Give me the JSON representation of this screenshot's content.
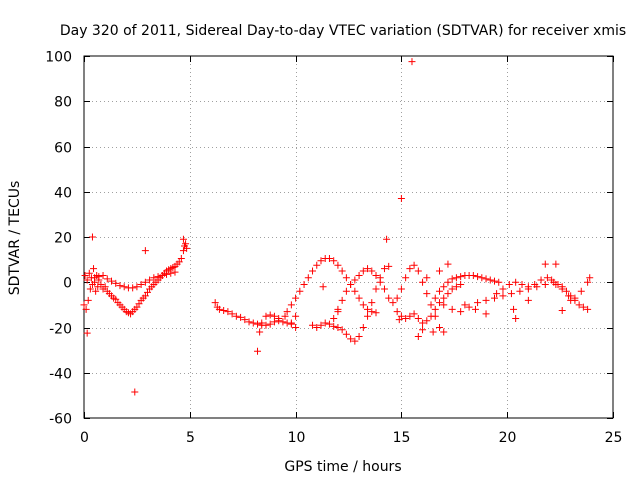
{
  "chart_data": {
    "type": "scatter",
    "title": "Day 320 of 2011, Sidereal Day-to-day VTEC variation (SDTVAR) for receiver xmis",
    "xlabel": "GPS time / hours",
    "ylabel": "SDTVAR / TECUs",
    "xlim": [
      0,
      25
    ],
    "ylim": [
      -60,
      100
    ],
    "xticks": [
      0,
      5,
      10,
      15,
      20,
      25
    ],
    "yticks": [
      -60,
      -40,
      -20,
      0,
      20,
      40,
      60,
      80,
      100
    ],
    "grid": true,
    "marker": "+",
    "color": "#ff0000",
    "series": [
      {
        "name": "SDTVAR",
        "points": [
          [
            0.0,
            -10.0
          ],
          [
            0.05,
            3.0
          ],
          [
            0.1,
            -12.0
          ],
          [
            0.15,
            1.0
          ],
          [
            0.2,
            -8.0
          ],
          [
            0.25,
            4.0
          ],
          [
            0.3,
            -3.0
          ],
          [
            0.35,
            2.0
          ],
          [
            0.4,
            -1.0
          ],
          [
            0.45,
            6.0
          ],
          [
            0.5,
            0.0
          ],
          [
            0.55,
            -4.0
          ],
          [
            0.6,
            3.0
          ],
          [
            0.65,
            -2.0
          ],
          [
            0.7,
            1.0
          ],
          [
            0.8,
            -1.0
          ],
          [
            0.9,
            -3.0
          ],
          [
            1.0,
            -2.0
          ],
          [
            1.1,
            -4.0
          ],
          [
            1.2,
            -5.0
          ],
          [
            1.3,
            -6.0
          ],
          [
            1.4,
            -7.0
          ],
          [
            1.5,
            -7.5
          ],
          [
            1.6,
            -9.0
          ],
          [
            1.7,
            -10.0
          ],
          [
            1.8,
            -11.0
          ],
          [
            1.9,
            -12.0
          ],
          [
            2.0,
            -13.0
          ],
          [
            2.1,
            -13.5
          ],
          [
            2.2,
            -14.0
          ],
          [
            2.3,
            -13.0
          ],
          [
            2.4,
            -12.0
          ],
          [
            2.5,
            -11.0
          ],
          [
            2.6,
            -9.5
          ],
          [
            2.7,
            -8.0
          ],
          [
            2.8,
            -7.0
          ],
          [
            2.9,
            -6.0
          ],
          [
            3.0,
            -4.5
          ],
          [
            3.1,
            -3.0
          ],
          [
            3.2,
            -2.0
          ],
          [
            3.3,
            -1.0
          ],
          [
            3.4,
            0.0
          ],
          [
            3.5,
            1.0
          ],
          [
            3.6,
            2.0
          ],
          [
            3.7,
            3.0
          ],
          [
            3.8,
            4.0
          ],
          [
            3.9,
            5.0
          ],
          [
            4.0,
            5.5
          ],
          [
            4.1,
            6.0
          ],
          [
            4.2,
            6.5
          ],
          [
            4.3,
            7.0
          ],
          [
            4.4,
            8.0
          ],
          [
            4.5,
            9.0
          ],
          [
            4.6,
            10.5
          ],
          [
            4.7,
            14.0
          ],
          [
            4.75,
            16.0
          ],
          [
            4.8,
            17.0
          ],
          [
            4.85,
            15.0
          ],
          [
            0.5,
            2.0
          ],
          [
            0.7,
            2.5
          ],
          [
            0.9,
            3.0
          ],
          [
            1.1,
            1.5
          ],
          [
            1.3,
            0.5
          ],
          [
            1.5,
            -0.5
          ],
          [
            1.7,
            -1.5
          ],
          [
            1.9,
            -2.0
          ],
          [
            2.1,
            -2.5
          ],
          [
            2.3,
            -2.5
          ],
          [
            2.5,
            -2.0
          ],
          [
            2.7,
            -1.0
          ],
          [
            2.9,
            0.0
          ],
          [
            3.1,
            1.0
          ],
          [
            3.3,
            2.0
          ],
          [
            3.5,
            2.5
          ],
          [
            3.7,
            3.0
          ],
          [
            3.9,
            3.5
          ],
          [
            4.1,
            4.0
          ],
          [
            4.3,
            4.5
          ],
          [
            0.4,
            20.0
          ],
          [
            2.4,
            -48.5
          ],
          [
            2.9,
            14.0
          ],
          [
            0.15,
            -22.5
          ],
          [
            4.7,
            19.0
          ],
          [
            6.2,
            -9.0
          ],
          [
            6.3,
            -11.0
          ],
          [
            6.4,
            -12.0
          ],
          [
            6.6,
            -12.5
          ],
          [
            6.8,
            -13.0
          ],
          [
            7.0,
            -14.0
          ],
          [
            7.2,
            -15.0
          ],
          [
            7.4,
            -15.5
          ],
          [
            7.6,
            -16.5
          ],
          [
            7.8,
            -17.5
          ],
          [
            8.0,
            -18.0
          ],
          [
            8.2,
            -18.5
          ],
          [
            8.4,
            -19.0
          ],
          [
            8.6,
            -19.0
          ],
          [
            8.8,
            -18.5
          ],
          [
            9.0,
            -17.5
          ],
          [
            9.2,
            -17.0
          ],
          [
            9.4,
            -17.5
          ],
          [
            9.6,
            -18.0
          ],
          [
            9.8,
            -18.5
          ],
          [
            10.0,
            -20.0
          ],
          [
            8.2,
            -30.5
          ],
          [
            8.3,
            -22.0
          ],
          [
            8.4,
            -18.0
          ],
          [
            8.6,
            -15.0
          ],
          [
            8.8,
            -14.5
          ],
          [
            9.0,
            -15.0
          ],
          [
            9.2,
            -16.0
          ],
          [
            9.5,
            -15.0
          ],
          [
            9.6,
            -13.0
          ],
          [
            9.8,
            -10.0
          ],
          [
            10.0,
            -7.0
          ],
          [
            10.2,
            -4.0
          ],
          [
            10.4,
            -1.0
          ],
          [
            10.6,
            2.0
          ],
          [
            10.8,
            5.0
          ],
          [
            11.0,
            7.5
          ],
          [
            11.2,
            9.5
          ],
          [
            11.4,
            10.5
          ],
          [
            11.6,
            10.5
          ],
          [
            11.8,
            9.5
          ],
          [
            12.0,
            7.5
          ],
          [
            12.2,
            5.0
          ],
          [
            12.4,
            2.0
          ],
          [
            12.6,
            -1.0
          ],
          [
            12.8,
            -4.0
          ],
          [
            13.0,
            -7.0
          ],
          [
            13.2,
            -10.0
          ],
          [
            13.4,
            -12.0
          ],
          [
            13.6,
            -13.0
          ],
          [
            13.8,
            -13.5
          ],
          [
            10.8,
            -19.0
          ],
          [
            11.0,
            -20.0
          ],
          [
            11.2,
            -19.0
          ],
          [
            11.4,
            -18.0
          ],
          [
            11.6,
            -18.5
          ],
          [
            11.8,
            -19.5
          ],
          [
            12.0,
            -20.0
          ],
          [
            12.2,
            -21.0
          ],
          [
            12.4,
            -23.0
          ],
          [
            12.6,
            -25.0
          ],
          [
            12.8,
            -26.0
          ],
          [
            13.0,
            -24.0
          ],
          [
            13.2,
            -20.0
          ],
          [
            13.4,
            -15.0
          ],
          [
            13.6,
            -9.0
          ],
          [
            13.8,
            -3.0
          ],
          [
            14.0,
            2.0
          ],
          [
            14.2,
            6.0
          ],
          [
            14.4,
            7.0
          ],
          [
            11.8,
            -16.0
          ],
          [
            12.0,
            -12.0
          ],
          [
            12.2,
            -8.0
          ],
          [
            12.4,
            -4.0
          ],
          [
            12.6,
            -1.0
          ],
          [
            12.8,
            1.0
          ],
          [
            13.0,
            3.0
          ],
          [
            13.2,
            5.0
          ],
          [
            13.4,
            6.0
          ],
          [
            13.6,
            5.0
          ],
          [
            13.8,
            3.0
          ],
          [
            14.0,
            0.0
          ],
          [
            14.2,
            -3.0
          ],
          [
            14.4,
            -7.0
          ],
          [
            14.6,
            -9.0
          ],
          [
            14.8,
            -7.0
          ],
          [
            15.0,
            -3.0
          ],
          [
            15.2,
            2.0
          ],
          [
            15.4,
            6.0
          ],
          [
            15.6,
            7.5
          ],
          [
            15.8,
            5.0
          ],
          [
            16.0,
            0.0
          ],
          [
            16.2,
            -5.0
          ],
          [
            16.4,
            -10.0
          ],
          [
            16.6,
            -15.0
          ],
          [
            16.8,
            -20.0
          ],
          [
            17.0,
            -22.0
          ],
          [
            14.8,
            -13.0
          ],
          [
            15.0,
            -15.0
          ],
          [
            15.2,
            -16.0
          ],
          [
            15.4,
            -15.0
          ],
          [
            15.6,
            -14.0
          ],
          [
            15.8,
            -16.0
          ],
          [
            16.0,
            -18.0
          ],
          [
            16.2,
            -17.0
          ],
          [
            16.4,
            -15.0
          ],
          [
            16.6,
            -12.0
          ],
          [
            16.8,
            -9.0
          ],
          [
            17.0,
            -7.0
          ],
          [
            17.2,
            -5.0
          ],
          [
            17.4,
            -3.0
          ],
          [
            17.6,
            -2.0
          ],
          [
            17.8,
            -1.0
          ],
          [
            16.6,
            -7.0
          ],
          [
            16.8,
            -4.0
          ],
          [
            17.0,
            -2.0
          ],
          [
            17.2,
            0.0
          ],
          [
            17.4,
            1.5
          ],
          [
            17.6,
            2.0
          ],
          [
            17.8,
            2.5
          ],
          [
            18.0,
            3.0
          ],
          [
            18.2,
            3.0
          ],
          [
            18.4,
            3.0
          ],
          [
            18.6,
            2.5
          ],
          [
            18.8,
            2.0
          ],
          [
            19.0,
            1.5
          ],
          [
            19.2,
            1.0
          ],
          [
            19.4,
            0.5
          ],
          [
            19.6,
            0.0
          ],
          [
            17.0,
            -10.0
          ],
          [
            17.4,
            -12.0
          ],
          [
            17.8,
            -13.0
          ],
          [
            18.2,
            -11.0
          ],
          [
            18.6,
            -9.0
          ],
          [
            19.0,
            -8.0
          ],
          [
            19.4,
            -7.0
          ],
          [
            19.8,
            -6.0
          ],
          [
            20.2,
            -5.0
          ],
          [
            20.6,
            -4.0
          ],
          [
            21.0,
            -3.0
          ],
          [
            21.4,
            -2.0
          ],
          [
            21.8,
            -1.0
          ],
          [
            22.2,
            0.0
          ],
          [
            22.4,
            -1.0
          ],
          [
            22.6,
            -2.0
          ],
          [
            22.8,
            -4.0
          ],
          [
            23.0,
            -6.0
          ],
          [
            23.2,
            -8.0
          ],
          [
            23.4,
            -10.0
          ],
          [
            23.6,
            -11.0
          ],
          [
            23.8,
            -12.0
          ],
          [
            19.5,
            -5.0
          ],
          [
            19.8,
            -3.0
          ],
          [
            20.1,
            -1.0
          ],
          [
            20.4,
            0.0
          ],
          [
            20.7,
            -1.0
          ],
          [
            21.0,
            -2.0
          ],
          [
            21.3,
            -1.0
          ],
          [
            21.6,
            1.0
          ],
          [
            21.9,
            2.0
          ],
          [
            22.1,
            1.0
          ],
          [
            22.3,
            -1.0
          ],
          [
            22.6,
            -3.0
          ],
          [
            22.9,
            -6.0
          ],
          [
            23.2,
            -7.0
          ],
          [
            23.5,
            -4.0
          ],
          [
            23.8,
            0.0
          ],
          [
            23.9,
            2.0
          ],
          [
            20.3,
            -12.0
          ],
          [
            20.4,
            -16.0
          ],
          [
            21.0,
            -8.0
          ],
          [
            22.6,
            -12.5
          ],
          [
            23.0,
            -8.0
          ],
          [
            21.8,
            8.0
          ],
          [
            22.3,
            8.0
          ],
          [
            17.2,
            8.0
          ],
          [
            16.8,
            5.0
          ],
          [
            16.2,
            2.0
          ],
          [
            14.3,
            19.0
          ],
          [
            15.0,
            37.0
          ],
          [
            15.5,
            97.5
          ],
          [
            15.8,
            -24.0
          ],
          [
            16.0,
            -21.0
          ],
          [
            14.9,
            -16.5
          ],
          [
            11.3,
            -2.0
          ],
          [
            12.0,
            -13.0
          ],
          [
            10.0,
            -15.0
          ],
          [
            9.8,
            -18.0
          ],
          [
            16.5,
            -22.0
          ],
          [
            18.0,
            -10.0
          ],
          [
            18.5,
            -12.0
          ],
          [
            19.0,
            -14.0
          ]
        ]
      }
    ]
  }
}
